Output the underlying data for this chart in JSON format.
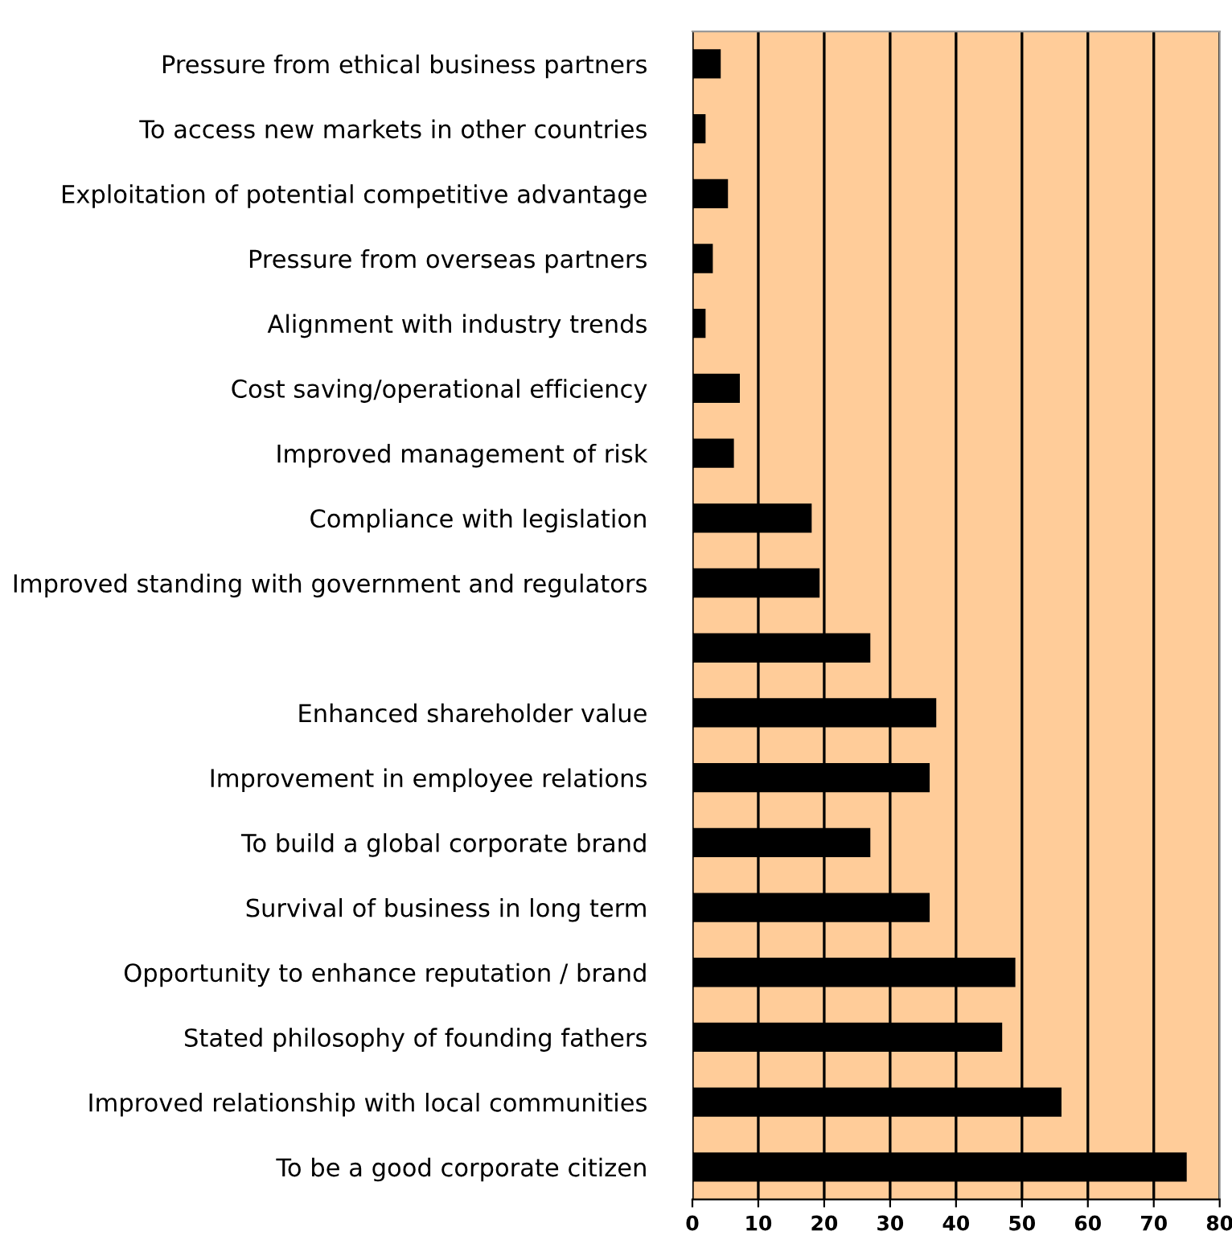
{
  "chart_data": {
    "type": "bar",
    "orientation": "horizontal",
    "categories": [
      "Pressure from ethical business partners",
      "To access new markets in other countries",
      "Exploitation of potential competitive advantage",
      "Pressure from overseas partners",
      "Alignment with industry trends",
      "Cost saving/operational efficiency",
      "Improved management of risk",
      "Compliance with legislation",
      "Improved standing with government and regulators",
      null,
      "Enhanced shareholder value",
      "Improvement in employee relations",
      "To build a global corporate brand",
      "Survival of business in long term",
      "Opportunity to enhance reputation / brand",
      "Stated philosophy of founding fathers",
      "Improved relationship with local communities",
      "To be a good corporate citizen"
    ],
    "values": [
      4.3,
      2,
      5.4,
      3.1,
      2,
      7.2,
      6.3,
      18.1,
      19.3,
      27,
      37,
      36,
      27,
      36,
      49,
      47,
      56,
      75
    ],
    "color": "#000000",
    "xlim": [
      0,
      80
    ],
    "xticks": [
      0,
      10,
      20,
      30,
      40,
      50,
      60,
      70,
      80
    ],
    "grid": "x",
    "legend": false
  }
}
